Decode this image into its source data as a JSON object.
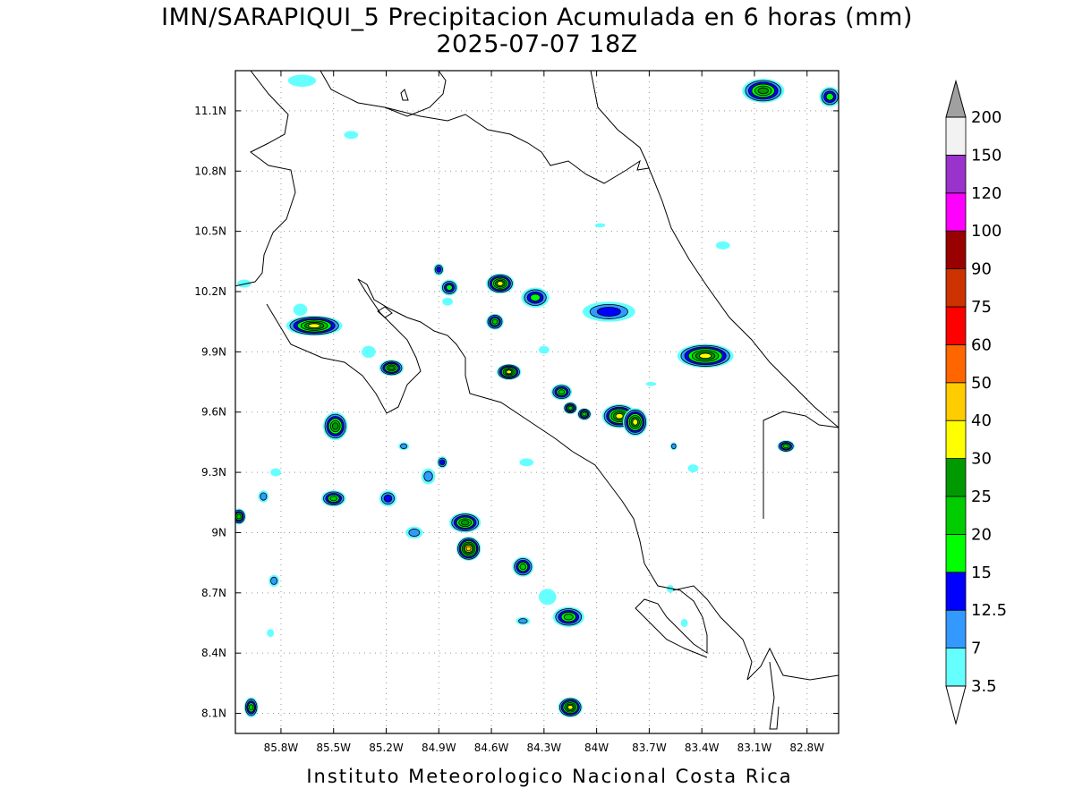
{
  "title_line1": "IMN/SARAPIQUI_5 Precipitacion Acumulada en 6 horas (mm)",
  "title_line2": "2025-07-07 18Z",
  "credit": "Instituto Meteorologico Nacional Costa Rica",
  "map": {
    "lon_range": [
      -86.06,
      -82.62
    ],
    "lat_range": [
      8.0,
      11.3
    ],
    "x_ticks": [
      {
        "lon": -85.8,
        "label": "85.8W"
      },
      {
        "lon": -85.5,
        "label": "85.5W"
      },
      {
        "lon": -85.2,
        "label": "85.2W"
      },
      {
        "lon": -84.9,
        "label": "84.9W"
      },
      {
        "lon": -84.6,
        "label": "84.6W"
      },
      {
        "lon": -84.3,
        "label": "84.3W"
      },
      {
        "lon": -84.0,
        "label": "84W"
      },
      {
        "lon": -83.7,
        "label": "83.7W"
      },
      {
        "lon": -83.4,
        "label": "83.4W"
      },
      {
        "lon": -83.1,
        "label": "83.1W"
      },
      {
        "lon": -82.8,
        "label": "82.8W"
      }
    ],
    "y_ticks": [
      {
        "lat": 11.1,
        "label": "11.1N"
      },
      {
        "lat": 10.8,
        "label": "10.8N"
      },
      {
        "lat": 10.5,
        "label": "10.5N"
      },
      {
        "lat": 10.2,
        "label": "10.2N"
      },
      {
        "lat": 9.9,
        "label": "9.9N"
      },
      {
        "lat": 9.6,
        "label": "9.6N"
      },
      {
        "lat": 9.3,
        "label": "9.3N"
      },
      {
        "lat": 9.0,
        "label": "9N"
      },
      {
        "lat": 8.7,
        "label": "8.7N"
      },
      {
        "lat": 8.4,
        "label": "8.4N"
      },
      {
        "lat": 8.1,
        "label": "8.1N"
      }
    ],
    "grid": "dotted"
  },
  "colorbar": {
    "levels": [
      {
        "label": "3.5",
        "color": "#66ffff"
      },
      {
        "label": "7",
        "color": "#3399ff"
      },
      {
        "label": "12.5",
        "color": "#0000ff"
      },
      {
        "label": "15",
        "color": "#00ff00"
      },
      {
        "label": "20",
        "color": "#00cc00"
      },
      {
        "label": "25",
        "color": "#009900"
      },
      {
        "label": "30",
        "color": "#ffff00"
      },
      {
        "label": "40",
        "color": "#ffcc00"
      },
      {
        "label": "50",
        "color": "#ff6600"
      },
      {
        "label": "60",
        "color": "#ff0000"
      },
      {
        "label": "75",
        "color": "#cc3300"
      },
      {
        "label": "90",
        "color": "#990000"
      },
      {
        "label": "100",
        "color": "#ff00ff"
      },
      {
        "label": "120",
        "color": "#9933cc"
      },
      {
        "label": "150",
        "color": "#f2f2f2"
      },
      {
        "label": "200",
        "color": "#a0a0a0"
      }
    ]
  },
  "precip_cells": [
    {
      "lon": -85.61,
      "lat": 10.03,
      "rx": 0.16,
      "ry": 0.05,
      "max": 30
    },
    {
      "lon": -85.17,
      "lat": 9.82,
      "rx": 0.07,
      "ry": 0.04,
      "max": 25
    },
    {
      "lon": -85.49,
      "lat": 9.53,
      "rx": 0.07,
      "ry": 0.07,
      "max": 25
    },
    {
      "lon": -85.5,
      "lat": 9.17,
      "rx": 0.07,
      "ry": 0.04,
      "max": 20
    },
    {
      "lon": -85.19,
      "lat": 9.17,
      "rx": 0.05,
      "ry": 0.04,
      "max": 12.5
    },
    {
      "lon": -84.84,
      "lat": 10.22,
      "rx": 0.05,
      "ry": 0.04,
      "max": 15
    },
    {
      "lon": -84.9,
      "lat": 10.31,
      "rx": 0.03,
      "ry": 0.03,
      "max": 12.5
    },
    {
      "lon": -84.55,
      "lat": 10.24,
      "rx": 0.08,
      "ry": 0.05,
      "max": 30
    },
    {
      "lon": -84.35,
      "lat": 10.17,
      "rx": 0.08,
      "ry": 0.05,
      "max": 15
    },
    {
      "lon": -84.58,
      "lat": 10.05,
      "rx": 0.05,
      "ry": 0.04,
      "max": 20
    },
    {
      "lon": -84.5,
      "lat": 9.8,
      "rx": 0.07,
      "ry": 0.04,
      "max": 30
    },
    {
      "lon": -84.2,
      "lat": 9.7,
      "rx": 0.06,
      "ry": 0.04,
      "max": 20
    },
    {
      "lon": -84.15,
      "lat": 9.62,
      "rx": 0.04,
      "ry": 0.03,
      "max": 20
    },
    {
      "lon": -84.07,
      "lat": 9.59,
      "rx": 0.04,
      "ry": 0.03,
      "max": 20
    },
    {
      "lon": -83.87,
      "lat": 9.58,
      "rx": 0.1,
      "ry": 0.06,
      "max": 30
    },
    {
      "lon": -83.78,
      "lat": 9.55,
      "rx": 0.07,
      "ry": 0.07,
      "max": 30
    },
    {
      "lon": -83.93,
      "lat": 10.1,
      "rx": 0.15,
      "ry": 0.05,
      "max": 12.5
    },
    {
      "lon": -83.38,
      "lat": 9.88,
      "rx": 0.16,
      "ry": 0.06,
      "max": 30
    },
    {
      "lon": -84.75,
      "lat": 9.05,
      "rx": 0.09,
      "ry": 0.05,
      "max": 25
    },
    {
      "lon": -84.73,
      "lat": 8.92,
      "rx": 0.07,
      "ry": 0.06,
      "max": 40
    },
    {
      "lon": -84.42,
      "lat": 8.83,
      "rx": 0.06,
      "ry": 0.05,
      "max": 20
    },
    {
      "lon": -84.16,
      "lat": 8.58,
      "rx": 0.09,
      "ry": 0.05,
      "max": 20
    },
    {
      "lon": -84.15,
      "lat": 8.13,
      "rx": 0.07,
      "ry": 0.05,
      "max": 30
    },
    {
      "lon": -85.97,
      "lat": 8.13,
      "rx": 0.04,
      "ry": 0.05,
      "max": 20
    },
    {
      "lon": -86.04,
      "lat": 9.08,
      "rx": 0.04,
      "ry": 0.04,
      "max": 20
    },
    {
      "lon": -82.92,
      "lat": 9.43,
      "rx": 0.05,
      "ry": 0.03,
      "max": 20
    },
    {
      "lon": -83.05,
      "lat": 11.2,
      "rx": 0.12,
      "ry": 0.06,
      "max": 25
    },
    {
      "lon": -82.67,
      "lat": 11.17,
      "rx": 0.06,
      "ry": 0.05,
      "max": 15
    },
    {
      "lon": -84.88,
      "lat": 9.35,
      "rx": 0.03,
      "ry": 0.03,
      "max": 12.5
    },
    {
      "lon": -85.1,
      "lat": 9.43,
      "rx": 0.03,
      "ry": 0.02,
      "max": 7
    },
    {
      "lon": -84.96,
      "lat": 9.28,
      "rx": 0.04,
      "ry": 0.04,
      "max": 7
    },
    {
      "lon": -85.9,
      "lat": 9.18,
      "rx": 0.03,
      "ry": 0.03,
      "max": 7
    },
    {
      "lon": -85.84,
      "lat": 8.76,
      "rx": 0.03,
      "ry": 0.03,
      "max": 7
    },
    {
      "lon": -85.04,
      "lat": 9.0,
      "rx": 0.05,
      "ry": 0.03,
      "max": 7
    },
    {
      "lon": -84.42,
      "lat": 8.56,
      "rx": 0.04,
      "ry": 0.02,
      "max": 7
    },
    {
      "lon": -83.56,
      "lat": 9.43,
      "rx": 0.02,
      "ry": 0.02,
      "max": 7
    },
    {
      "lon": -85.83,
      "lat": 9.3,
      "rx": 0.03,
      "ry": 0.02,
      "max": 3.5
    },
    {
      "lon": -86.01,
      "lat": 10.24,
      "rx": 0.04,
      "ry": 0.02,
      "max": 3.5
    },
    {
      "lon": -85.69,
      "lat": 10.11,
      "rx": 0.04,
      "ry": 0.03,
      "max": 3.5
    },
    {
      "lon": -85.3,
      "lat": 9.9,
      "rx": 0.04,
      "ry": 0.03,
      "max": 3.5
    },
    {
      "lon": -84.4,
      "lat": 9.35,
      "rx": 0.04,
      "ry": 0.02,
      "max": 3.5
    },
    {
      "lon": -84.28,
      "lat": 8.68,
      "rx": 0.05,
      "ry": 0.04,
      "max": 3.5
    },
    {
      "lon": -84.3,
      "lat": 9.91,
      "rx": 0.03,
      "ry": 0.02,
      "max": 3.5
    },
    {
      "lon": -83.5,
      "lat": 8.55,
      "rx": 0.02,
      "ry": 0.02,
      "max": 3.5
    },
    {
      "lon": -83.45,
      "lat": 9.32,
      "rx": 0.03,
      "ry": 0.02,
      "max": 3.5
    },
    {
      "lon": -83.58,
      "lat": 8.72,
      "rx": 0.02,
      "ry": 0.02,
      "max": 3.5
    },
    {
      "lon": -83.28,
      "lat": 10.43,
      "rx": 0.04,
      "ry": 0.02,
      "max": 3.5
    },
    {
      "lon": -83.98,
      "lat": 10.53,
      "rx": 0.03,
      "ry": 0.01,
      "max": 3.5
    },
    {
      "lon": -84.85,
      "lat": 10.15,
      "rx": 0.03,
      "ry": 0.02,
      "max": 3.5
    },
    {
      "lon": -83.69,
      "lat": 9.74,
      "rx": 0.03,
      "ry": 0.01,
      "max": 3.5
    },
    {
      "lon": -85.4,
      "lat": 10.98,
      "rx": 0.04,
      "ry": 0.02,
      "max": 3.5
    },
    {
      "lon": -85.86,
      "lat": 8.5,
      "rx": 0.02,
      "ry": 0.02,
      "max": 3.5
    },
    {
      "lon": -85.68,
      "lat": 11.25,
      "rx": 0.08,
      "ry": 0.03,
      "max": 3.5
    }
  ]
}
